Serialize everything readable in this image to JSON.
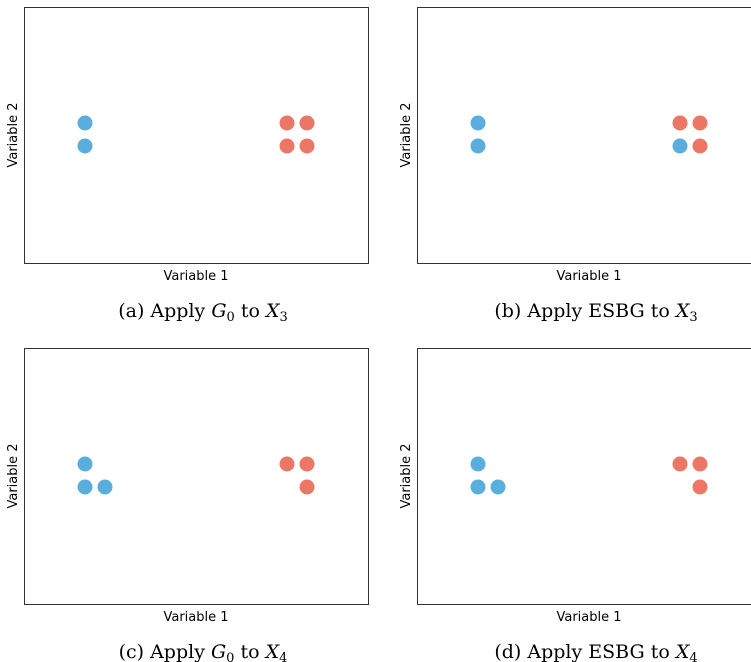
{
  "colors": {
    "class_a": "#5aaede",
    "class_b": "#ec7766"
  },
  "chart_data": [
    {
      "type": "scatter",
      "xlabel": "Variable 1",
      "ylabel": "Variable 2",
      "caption": {
        "prefix": "(a) Apply ",
        "g": "G",
        "g_sub": "0",
        "mid": " to ",
        "x": "X",
        "x_sub": "3"
      },
      "series": [
        {
          "color_key": "class_a",
          "points": [
            [
              1,
              2
            ],
            [
              1,
              1
            ]
          ]
        },
        {
          "color_key": "class_b",
          "points": [
            [
              3,
              2
            ],
            [
              4,
              2
            ],
            [
              3,
              1
            ],
            [
              4,
              1
            ]
          ]
        }
      ]
    },
    {
      "type": "scatter",
      "xlabel": "Variable 1",
      "ylabel": "Variable 2",
      "caption": {
        "prefix": "(b) Apply ESBG to ",
        "x": "X",
        "x_sub": "3"
      },
      "series": [
        {
          "color_key": "class_a",
          "points": [
            [
              1,
              2
            ],
            [
              1,
              1
            ],
            [
              3,
              1
            ]
          ]
        },
        {
          "color_key": "class_b",
          "points": [
            [
              3,
              2
            ],
            [
              4,
              2
            ],
            [
              4,
              1
            ]
          ]
        }
      ]
    },
    {
      "type": "scatter",
      "xlabel": "Variable 1",
      "ylabel": "Variable 2",
      "caption": {
        "prefix": "(c) Apply ",
        "g": "G",
        "g_sub": "0",
        "mid": " to ",
        "x": "X",
        "x_sub": "4"
      },
      "series": [
        {
          "color_key": "class_a",
          "points": [
            [
              1,
              2
            ],
            [
              1,
              1
            ],
            [
              2,
              1
            ]
          ]
        },
        {
          "color_key": "class_b",
          "points": [
            [
              3,
              2
            ],
            [
              4,
              2
            ],
            [
              4,
              1
            ]
          ]
        }
      ]
    },
    {
      "type": "scatter",
      "xlabel": "Variable 1",
      "ylabel": "Variable 2",
      "caption": {
        "prefix": "(d) Apply ESBG to ",
        "x": "X",
        "x_sub": "4"
      },
      "series": [
        {
          "color_key": "class_a",
          "points": [
            [
              1,
              2
            ],
            [
              1,
              1
            ],
            [
              2,
              1
            ]
          ]
        },
        {
          "color_key": "class_b",
          "points": [
            [
              3,
              2
            ],
            [
              4,
              2
            ],
            [
              4,
              1
            ]
          ]
        }
      ]
    }
  ]
}
